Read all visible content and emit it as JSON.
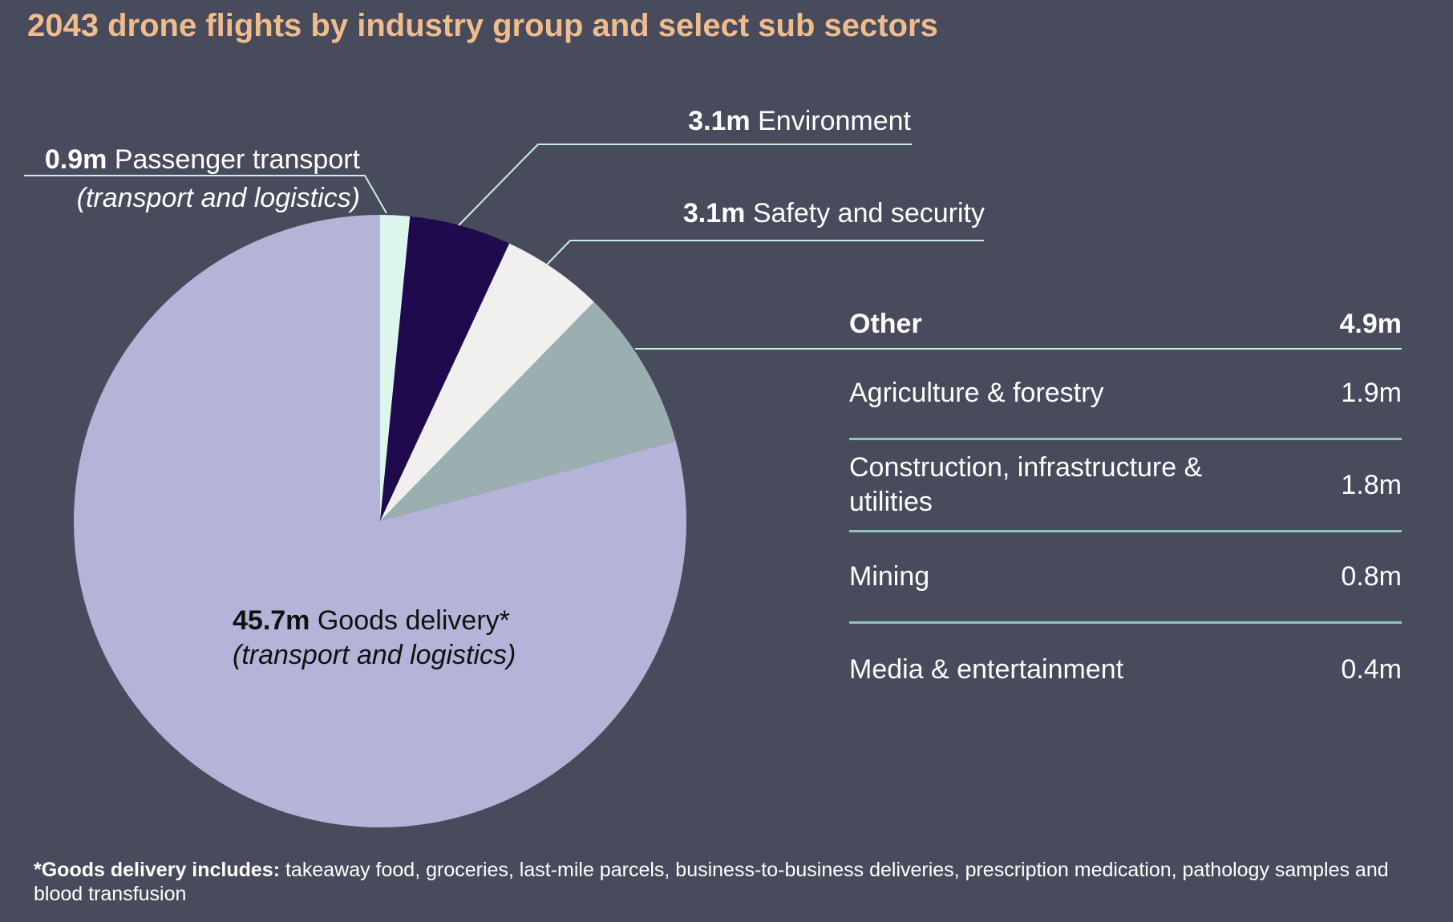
{
  "title": "2043 drone flights by industry group and select sub sectors",
  "colors": {
    "background": "#484b5c",
    "title": "#f0bc8c",
    "leader_lines": "#c9f0e4",
    "table_rule": "#8fc7b7"
  },
  "labels": {
    "passenger": {
      "value": "0.9m",
      "name": "Passenger transport",
      "sub": "(transport and logistics)"
    },
    "environment": {
      "value": "3.1m",
      "name": "Environment"
    },
    "safety": {
      "value": "3.1m",
      "name": "Safety and security"
    },
    "goods": {
      "value": "45.7m",
      "name": "Goods delivery*",
      "sub": "(transport and logistics)"
    }
  },
  "other_table": {
    "header": {
      "label": "Other",
      "value": "4.9m"
    },
    "rows": [
      {
        "label": "Agriculture & forestry",
        "value": "1.9m"
      },
      {
        "label": "Construction, infrastructure & utilities",
        "value": "1.8m"
      },
      {
        "label": "Mining",
        "value": "0.8m"
      },
      {
        "label": "Media & entertainment",
        "value": "0.4m"
      }
    ]
  },
  "footnote": {
    "bold": "*Goods delivery includes:",
    "text": " takeaway food, groceries, last-mile parcels, business-to-business deliveries, prescription medication, pathology samples and blood transfusion"
  },
  "chart_data": {
    "type": "pie",
    "title": "2043 drone flights by industry group and select sub sectors",
    "unit": "m",
    "start_angle_deg": 0,
    "direction": "clockwise",
    "series": [
      {
        "name": "Passenger transport",
        "value": 0.9,
        "color": "#dcf6ee"
      },
      {
        "name": "Environment",
        "value": 3.1,
        "color": "#1f0a4d"
      },
      {
        "name": "Safety and security",
        "value": 3.1,
        "color": "#f1f0ee"
      },
      {
        "name": "Other",
        "value": 4.9,
        "color": "#9baeb0"
      },
      {
        "name": "Goods delivery*",
        "value": 45.7,
        "color": "#b4b3d8"
      }
    ]
  }
}
